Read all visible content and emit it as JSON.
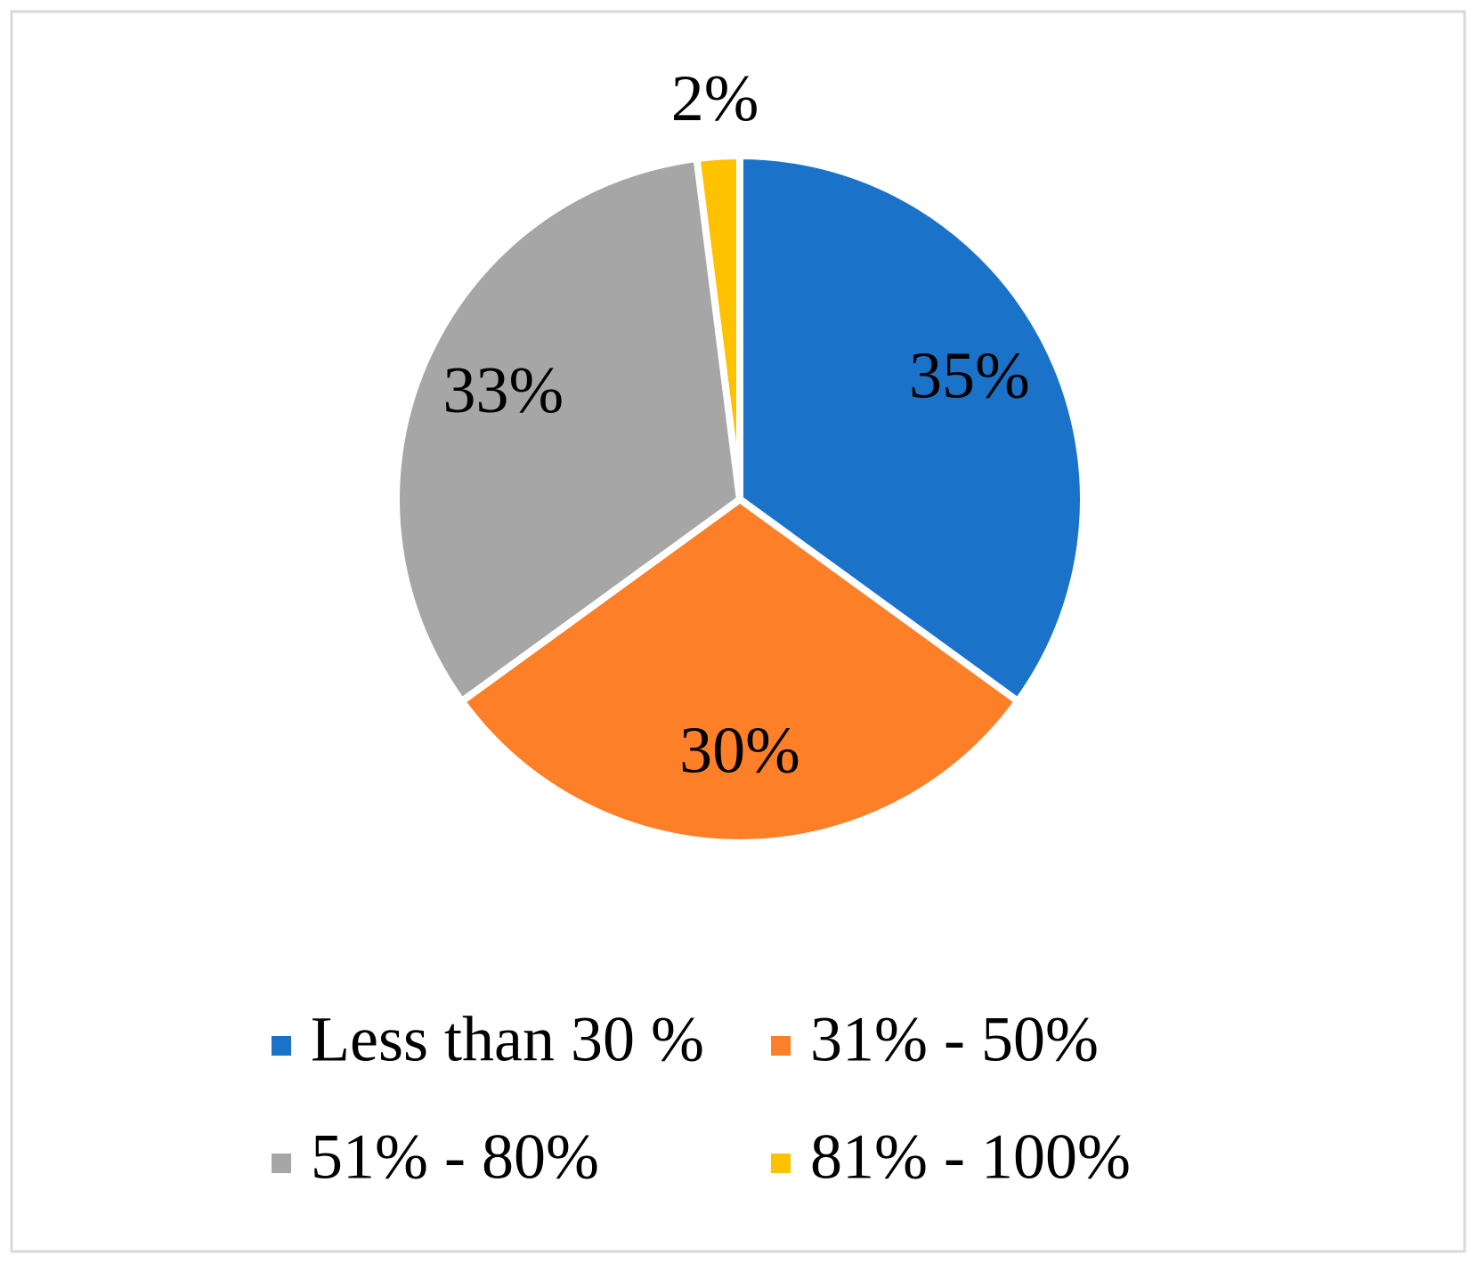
{
  "chart_data": {
    "type": "pie",
    "categories": [
      "Less than 30 %",
      "31% - 50%",
      "51% - 80%",
      "81% - 100%"
    ],
    "values": [
      35,
      30,
      33,
      2
    ],
    "value_labels": [
      "35%",
      "30%",
      "33%",
      "2%"
    ],
    "colors": [
      "#1a73c8",
      "#fd7f27",
      "#a6a6a6",
      "#fdc100"
    ],
    "legend": "bottom"
  }
}
